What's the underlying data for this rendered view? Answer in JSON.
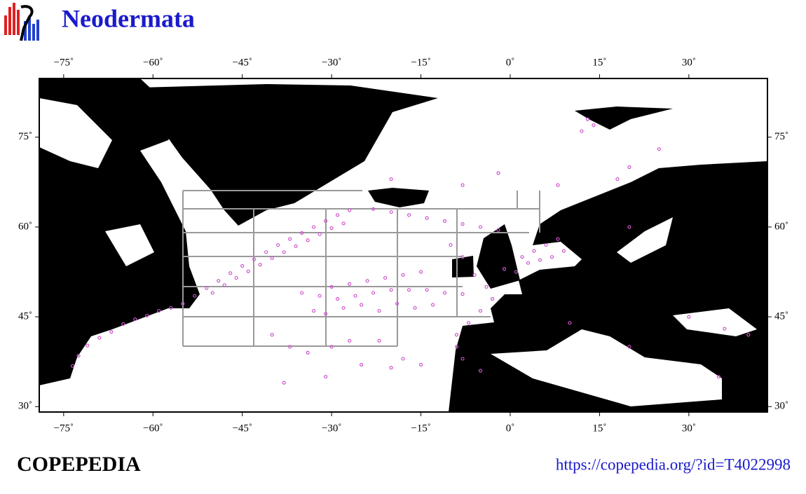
{
  "header": {
    "title": "Neodermata"
  },
  "map": {
    "lon_range": [
      -79.1,
      43.2
    ],
    "lat_range": [
      29.1,
      84.8
    ],
    "xticks": [
      {
        "value": -75,
        "label": "−75˚"
      },
      {
        "value": -60,
        "label": "−60˚"
      },
      {
        "value": -45,
        "label": "−45˚"
      },
      {
        "value": -30,
        "label": "−30˚"
      },
      {
        "value": -15,
        "label": "−15˚"
      },
      {
        "value": 0,
        "label": "0˚"
      },
      {
        "value": 15,
        "label": "15˚"
      },
      {
        "value": 30,
        "label": "30˚"
      }
    ],
    "yticks": [
      {
        "value": 30,
        "label": "30˚"
      },
      {
        "value": 45,
        "label": "45˚"
      },
      {
        "value": 60,
        "label": "60˚"
      },
      {
        "value": 75,
        "label": "75˚"
      }
    ],
    "point_color": "#cc55cc",
    "points": [
      [
        -73.5,
        36.8
      ],
      [
        -72.5,
        38.5
      ],
      [
        -71,
        40.2
      ],
      [
        -69,
        41.5
      ],
      [
        -67,
        42.5
      ],
      [
        -65,
        43.8
      ],
      [
        -63,
        44.6
      ],
      [
        -61,
        45.2
      ],
      [
        -59,
        46
      ],
      [
        -57,
        46.5
      ],
      [
        -55,
        47.2
      ],
      [
        -53,
        48.5
      ],
      [
        -51,
        49.8
      ],
      [
        -49,
        51
      ],
      [
        -47,
        52.3
      ],
      [
        -45,
        53.5
      ],
      [
        -43,
        54.6
      ],
      [
        -41,
        55.8
      ],
      [
        -39,
        57
      ],
      [
        -37,
        58
      ],
      [
        -35,
        59
      ],
      [
        -33,
        60
      ],
      [
        -31,
        61
      ],
      [
        -29,
        62
      ],
      [
        -27,
        62.8
      ],
      [
        -50,
        49
      ],
      [
        -48,
        50.3
      ],
      [
        -46,
        51.5
      ],
      [
        -44,
        52.6
      ],
      [
        -42,
        53.7
      ],
      [
        -40,
        54.8
      ],
      [
        -38,
        55.8
      ],
      [
        -36,
        56.8
      ],
      [
        -34,
        57.8
      ],
      [
        -32,
        58.8
      ],
      [
        -30,
        59.8
      ],
      [
        -28,
        60.6
      ],
      [
        -35,
        49
      ],
      [
        -32,
        48.5
      ],
      [
        -29,
        48
      ],
      [
        -26,
        48.5
      ],
      [
        -23,
        49
      ],
      [
        -20,
        49.5
      ],
      [
        -17,
        49.5
      ],
      [
        -14,
        49.5
      ],
      [
        -11,
        49
      ],
      [
        -8,
        48.8
      ],
      [
        -30,
        50
      ],
      [
        -27,
        50.5
      ],
      [
        -24,
        51
      ],
      [
        -21,
        51.5
      ],
      [
        -18,
        52
      ],
      [
        -15,
        52.5
      ],
      [
        -33,
        46
      ],
      [
        -31,
        45.5
      ],
      [
        -28,
        46.5
      ],
      [
        -25,
        47
      ],
      [
        -22,
        46
      ],
      [
        -19,
        47.2
      ],
      [
        -16,
        46.5
      ],
      [
        -13,
        47
      ],
      [
        -40,
        42
      ],
      [
        -37,
        40
      ],
      [
        -34,
        39
      ],
      [
        -30,
        40
      ],
      [
        -27,
        41
      ],
      [
        -22,
        41
      ],
      [
        -18,
        38
      ],
      [
        -38,
        34
      ],
      [
        -31,
        35
      ],
      [
        -25,
        37
      ],
      [
        -20,
        36.5
      ],
      [
        -15,
        37
      ],
      [
        -23,
        63
      ],
      [
        -20,
        62.5
      ],
      [
        -17,
        62
      ],
      [
        -14,
        61.5
      ],
      [
        -11,
        61
      ],
      [
        -8,
        60.5
      ],
      [
        -5,
        60
      ],
      [
        -2,
        59.5
      ],
      [
        -10,
        57
      ],
      [
        -8,
        55
      ],
      [
        -6,
        52
      ],
      [
        -4,
        50
      ],
      [
        -3,
        48
      ],
      [
        -5,
        46
      ],
      [
        -7,
        44
      ],
      [
        -9,
        42
      ],
      [
        -9,
        40
      ],
      [
        -8,
        38
      ],
      [
        -5,
        36
      ],
      [
        2,
        55
      ],
      [
        4,
        56
      ],
      [
        6,
        57
      ],
      [
        8,
        58
      ],
      [
        -1,
        53
      ],
      [
        1,
        52.5
      ],
      [
        3,
        54
      ],
      [
        5,
        54.5
      ],
      [
        7,
        55
      ],
      [
        9,
        56
      ],
      [
        12,
        76
      ],
      [
        13,
        78
      ],
      [
        14,
        77
      ],
      [
        20,
        60
      ],
      [
        25,
        73
      ],
      [
        20,
        70
      ],
      [
        30,
        45
      ],
      [
        36,
        43
      ],
      [
        40,
        42
      ],
      [
        10,
        44
      ],
      [
        20,
        40
      ],
      [
        35,
        35
      ],
      [
        -20,
        68
      ],
      [
        -8,
        67
      ],
      [
        -2,
        69
      ],
      [
        8,
        67
      ],
      [
        18,
        68
      ]
    ]
  },
  "footer": {
    "brand": "COPEPEDIA",
    "url": "https://copepedia.org/?id=T4022998"
  }
}
